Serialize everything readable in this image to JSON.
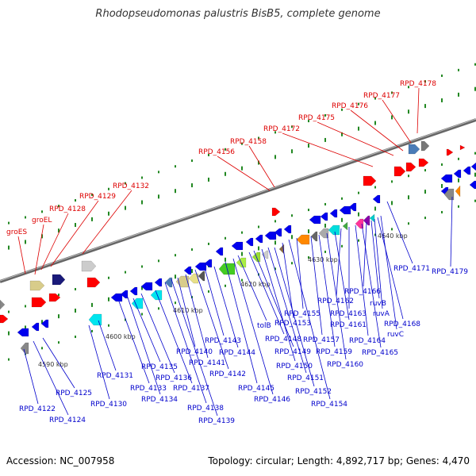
{
  "title": "Rhodopseudomonas palustris BisB5, complete genome",
  "footer": {
    "accession": "Accession: NC_007958",
    "summary": "Topology: circular; Length: 4,892,717 bp; Genes: 4,470"
  },
  "colors": {
    "forward_label": "#dd0000",
    "reverse_label": "#0000cc",
    "axis": "#888888",
    "tick": "#228822"
  },
  "ruler": [
    "4590 kbp",
    "4600 kbp",
    "4610 kbp",
    "4620 kbp",
    "4630 kbp",
    "4640 kbp"
  ],
  "forward_labels": [
    "groES",
    "groEL",
    "RPD_4128",
    "RPD_4129",
    "RPD_4132",
    "RPD_4156",
    "RPD_4158",
    "RPD_4172",
    "RPD_4175",
    "RPD_4176",
    "RPD_4177",
    "RPD_4178"
  ],
  "reverse_labels": [
    "RPD_4122",
    "RPD_4124",
    "RPD_4125",
    "RPD_4130",
    "RPD_4131",
    "RPD_4133",
    "RPD_4134",
    "RPD_4135",
    "RPD_4136",
    "RPD_4137",
    "RPD_4138",
    "RPD_4139",
    "RPD_4140",
    "RPD_4141",
    "RPD_4142",
    "RPD_4143",
    "RPD_4144",
    "RPD_4145",
    "RPD_4146",
    "tolB",
    "RPD_4148",
    "RPD_4149",
    "RPD_4150",
    "RPD_4151",
    "RPD_4152",
    "RPD_4153",
    "RPD_4154",
    "RPD_4155",
    "RPD_4157",
    "RPD_4159",
    "RPD_4160",
    "RPD_4161",
    "RPD_4162",
    "RPD_4163",
    "RPD_4164",
    "RPD_4165",
    "RPD_4166",
    "ruvB",
    "ruvA",
    "RPD_4168",
    "ruvC",
    "RPD_4171",
    "RPD_4179"
  ]
}
